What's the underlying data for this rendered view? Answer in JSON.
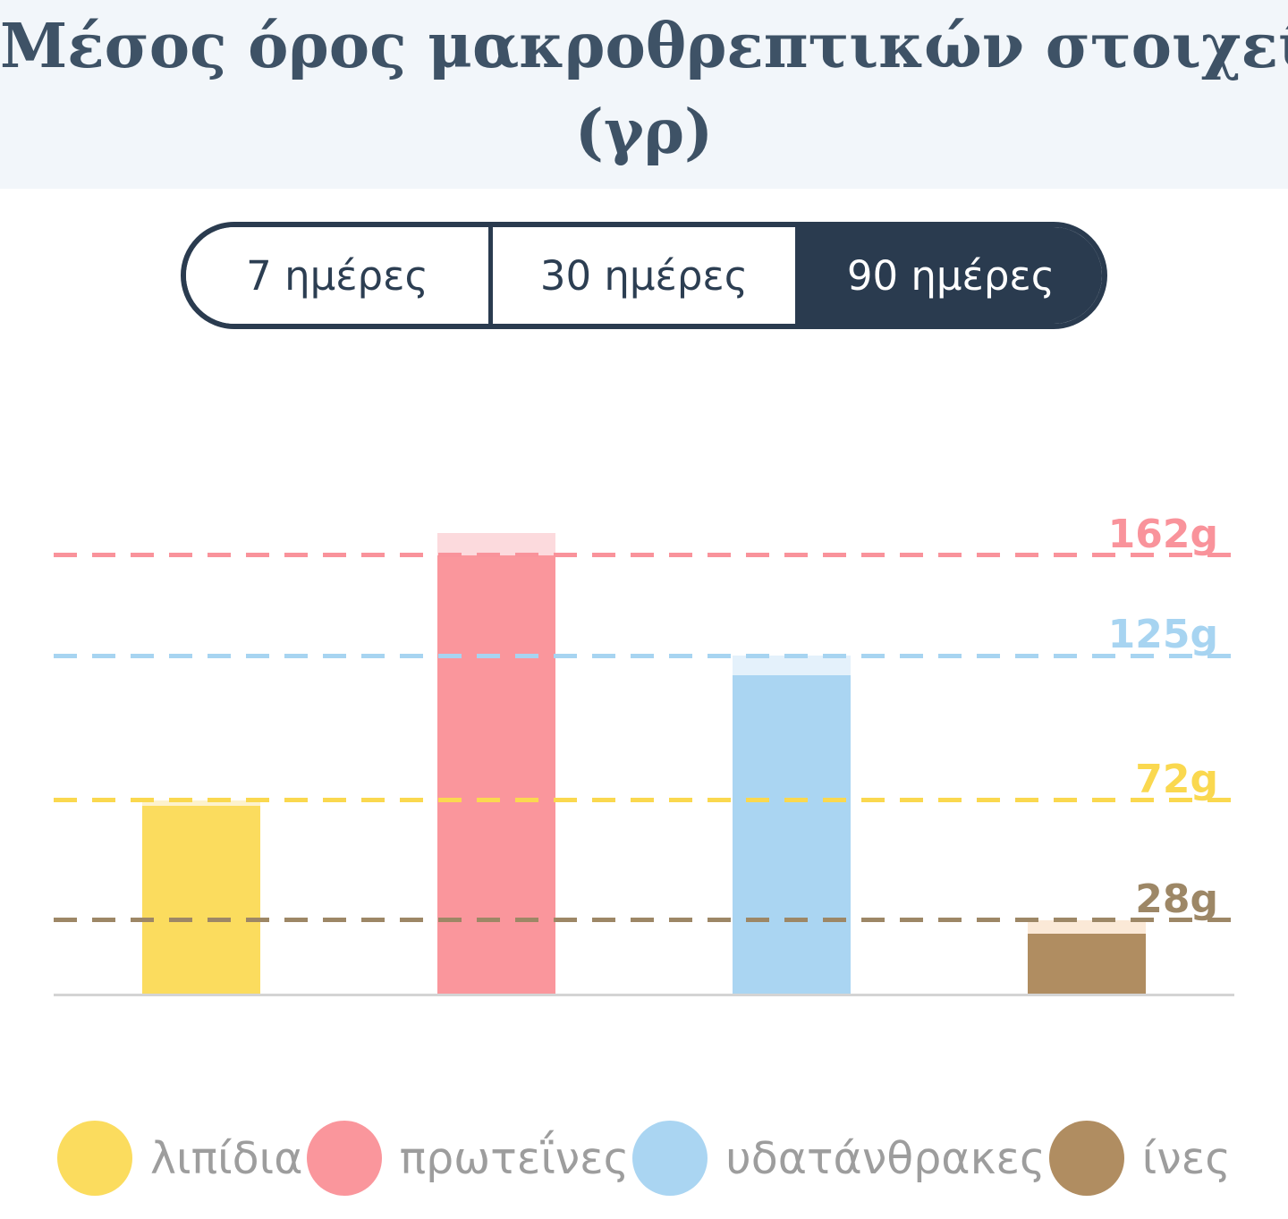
{
  "page": {
    "background": "#FFFFFF",
    "header_background": "#F2F6FA"
  },
  "title": {
    "line1": "Μέσος όρος μακροθρεπτικών στοιχείων",
    "line2": "(γρ)",
    "color": "#3E5266"
  },
  "range_selector": {
    "selected": "90 ημέρες",
    "accent_color": "#2A3B4F",
    "options": [
      {
        "label": "7 ημέρες",
        "selected": false
      },
      {
        "label": "30 ημέρες",
        "selected": false
      },
      {
        "label": "90 ημέρες",
        "selected": true
      }
    ]
  },
  "chart_data": {
    "type": "bar",
    "title": "Μέσος όρος μακροθρεπτικών στοιχείων (γρ)",
    "unit": "γρ (grams)",
    "ylim": [
      0,
      185
    ],
    "grid": "horizontal dashed goal lines, one per series",
    "legend_position": "bottom",
    "axis_color": "#D4D4D4",
    "legend_text_color": "#9D9D9D",
    "categories": [
      "λιπίδια",
      "πρωτεΐνες",
      "υδατάνθρακες",
      "ίνες"
    ],
    "series": [
      {
        "key": "lipids",
        "label": "λιπίδια",
        "value": 70,
        "goal": 72,
        "goal_label": "72g",
        "color": "#FBDC5E",
        "light_color": "#FDF2CD",
        "line_color": "#FAD84F"
      },
      {
        "key": "proteins",
        "label": "πρωτεΐνες",
        "value": 170,
        "goal": 162,
        "goal_label": "162g",
        "color": "#FA969C",
        "light_color": "#FCDADD",
        "line_color": "#F9939B"
      },
      {
        "key": "carbs",
        "label": "υδατάνθρακες",
        "value": 118,
        "goal": 125,
        "goal_label": "125g",
        "color": "#AAD5F2",
        "light_color": "#E4F1FB",
        "line_color": "#A7D4F1"
      },
      {
        "key": "fiber",
        "label": "ίνες",
        "value": 23,
        "goal": 28,
        "goal_label": "28g",
        "color": "#B08D61",
        "light_color": "#FBE9D7",
        "line_color": "#9D8766"
      }
    ]
  }
}
